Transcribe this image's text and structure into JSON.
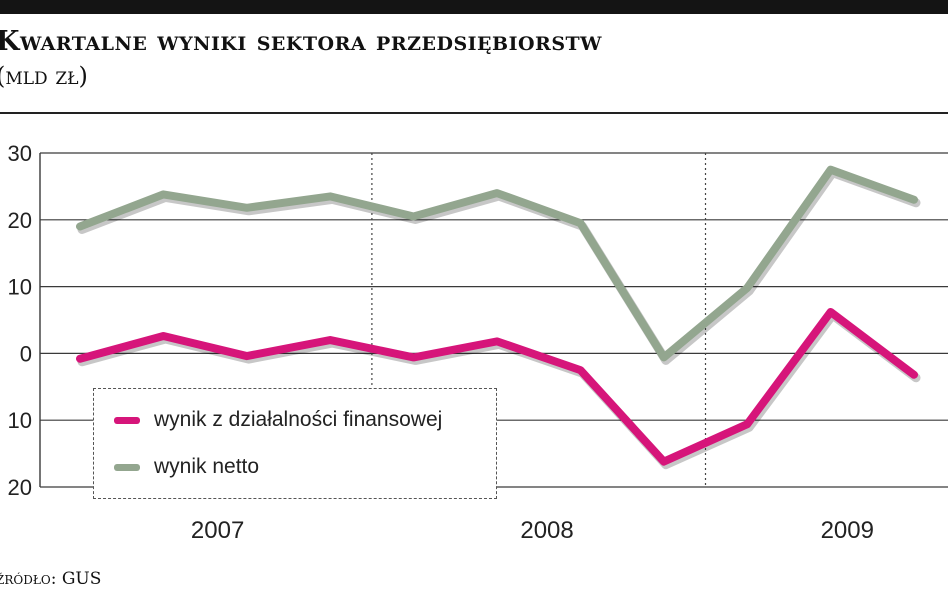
{
  "header": {
    "title": "Kwartalne wyniki sektora przedsiębiorstw",
    "subtitle": "(mld zł)"
  },
  "source": "źródło: GUS",
  "chart_data": {
    "type": "line",
    "title": "Kwartalne wyniki sektora przedsiębiorstw",
    "subtitle": "(mld zł)",
    "ylim": [
      -20,
      30
    ],
    "yticks": [
      -20,
      -10,
      0,
      10,
      20,
      30
    ],
    "ytick_labels": [
      "20",
      "10",
      "0",
      "10",
      "20",
      "30"
    ],
    "x": [
      "2007 Q1",
      "2007 Q2",
      "2007 Q3",
      "2007 Q4",
      "2008 Q1",
      "2008 Q2",
      "2008 Q3",
      "2008 Q4",
      "2009 Q1",
      "2009 Q2",
      "2009 Q3"
    ],
    "year_labels": [
      "2007",
      "2008",
      "2009"
    ],
    "grid": true,
    "legend": "bottom-left",
    "series": [
      {
        "name": "wynik z działalności finansowej",
        "color": "#d6157a",
        "values": [
          -0.8,
          2.6,
          -0.4,
          2.0,
          -0.6,
          1.8,
          -2.5,
          -16.2,
          -10.6,
          6.2,
          -3.2
        ]
      },
      {
        "name": "wynik netto",
        "color": "#93a68f",
        "values": [
          19.0,
          23.8,
          21.8,
          23.5,
          20.5,
          24.0,
          19.5,
          -0.6,
          9.8,
          27.5,
          23.0
        ]
      }
    ]
  },
  "colors": {
    "text": "#111111",
    "grid": "#3a3a3a",
    "top_bar": "#141414"
  }
}
